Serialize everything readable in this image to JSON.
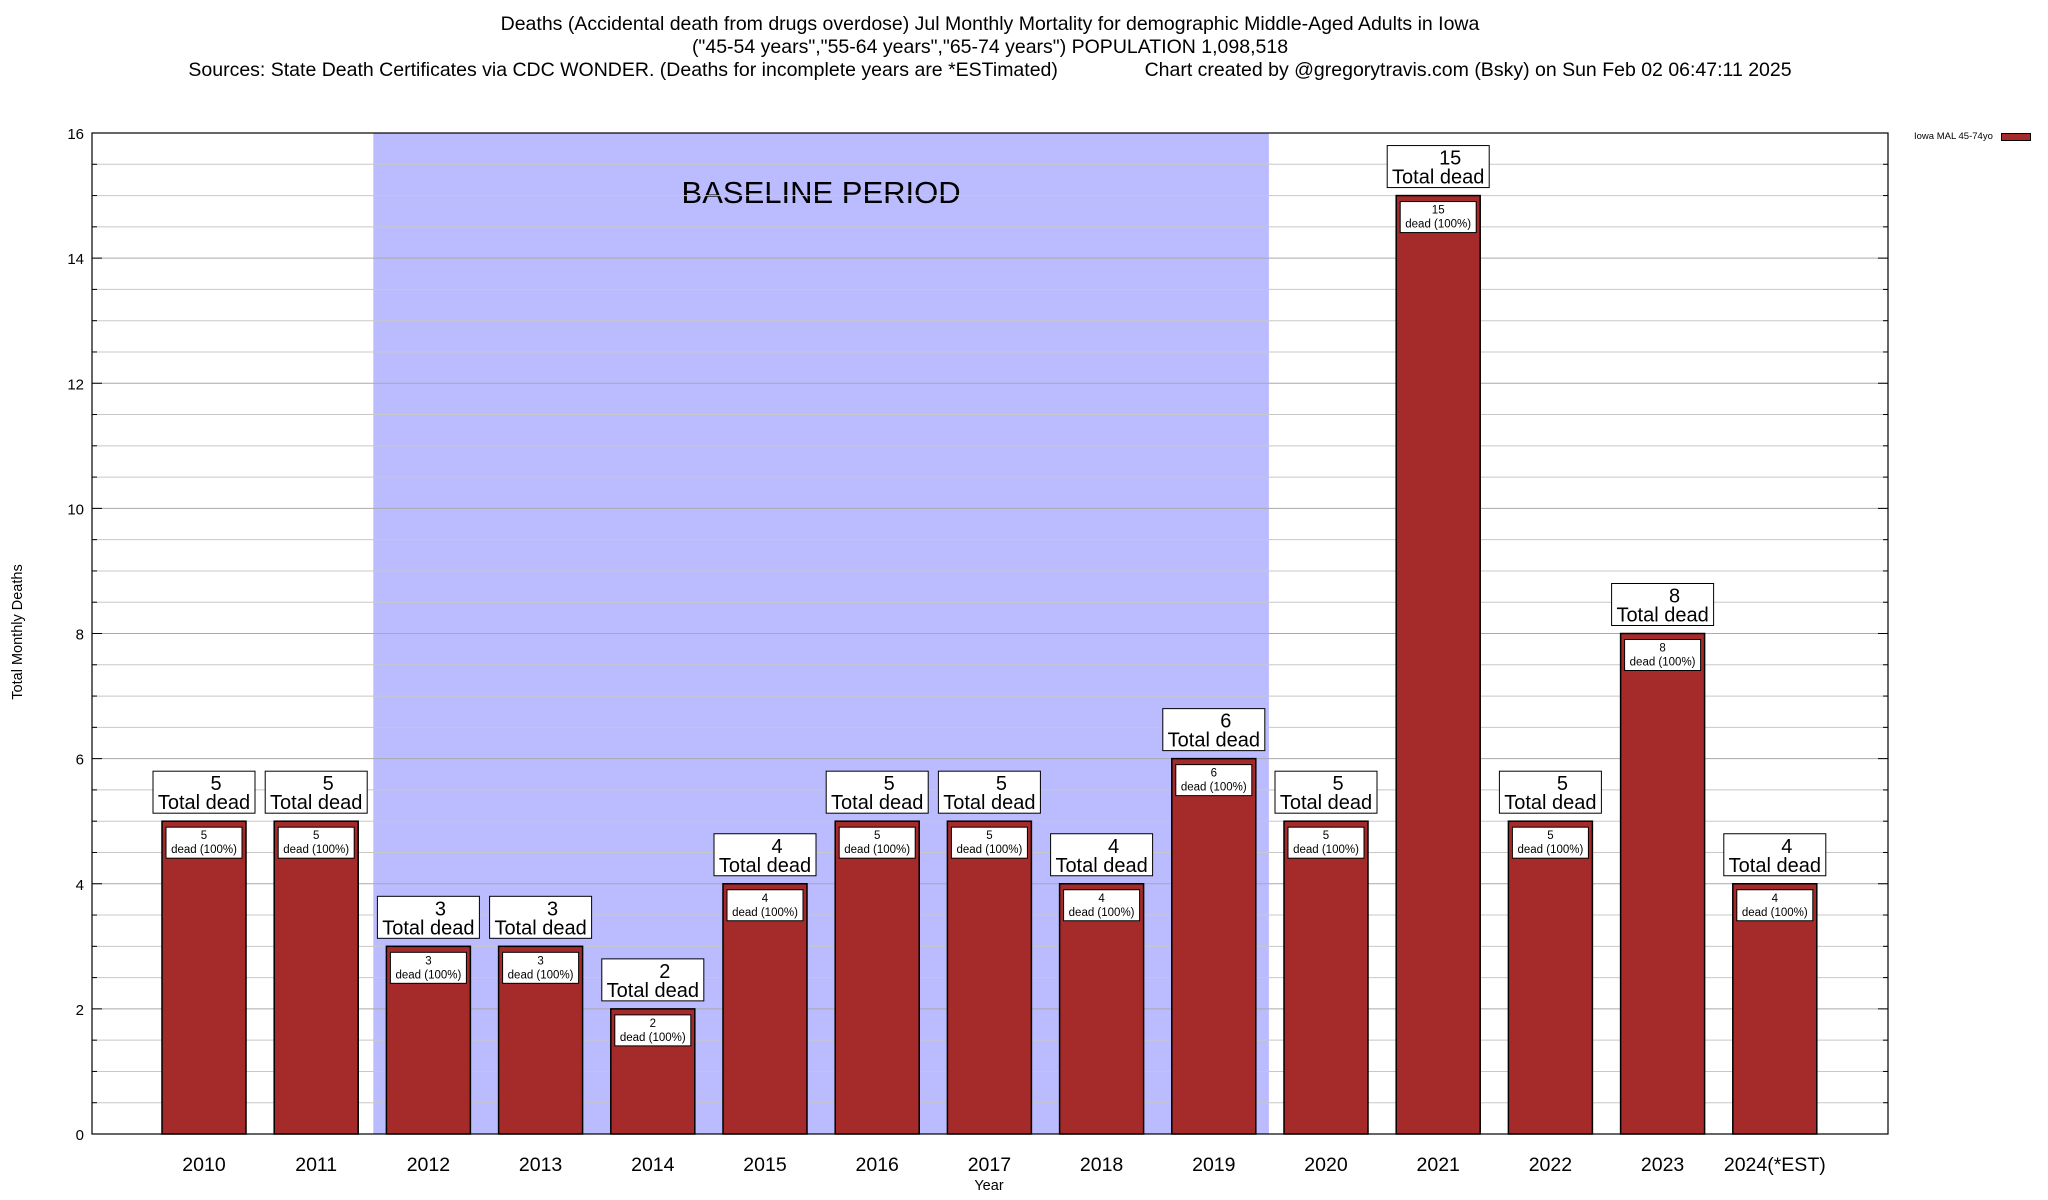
{
  "chart_data": {
    "type": "bar",
    "title_lines": [
      "Deaths (Accidental death from drugs overdose) Jul Monthly Mortality for demographic Middle-Aged Adults in Iowa",
      "(\"45-54 years\",\"55-64 years\",\"65-74 years\") POPULATION 1,098,518",
      "Sources: State Death Certificates via CDC WONDER. (Deaths for incomplete years are *ESTimated)                Chart created by @gregorytravis.com (Bsky) on Sun Feb 02 06:47:11 2025"
    ],
    "xlabel": "Year",
    "ylabel": "Total Monthly Deaths",
    "ylim": [
      0,
      16
    ],
    "y_ticks": [
      0,
      2,
      4,
      6,
      8,
      10,
      12,
      14,
      16
    ],
    "grid": true,
    "categories": [
      "2010",
      "2011",
      "2012",
      "2013",
      "2014",
      "2015",
      "2016",
      "2017",
      "2018",
      "2019",
      "2020",
      "2021",
      "2022",
      "2023",
      "2024(*EST)"
    ],
    "series": [
      {
        "name": "Iowa MAL 45-74yo",
        "values": [
          5,
          5,
          3,
          3,
          2,
          4,
          5,
          5,
          4,
          6,
          5,
          15,
          5,
          8,
          4
        ],
        "color": "#A52A2A"
      }
    ],
    "total_label_suffix": "Total dead",
    "bar_label_suffix": "dead (100%)",
    "baseline": {
      "label": "BASELINE PERIOD",
      "start_category": "2012",
      "end_category": "2019",
      "color": "#BBBBFF"
    },
    "legend_position": "top-right"
  }
}
